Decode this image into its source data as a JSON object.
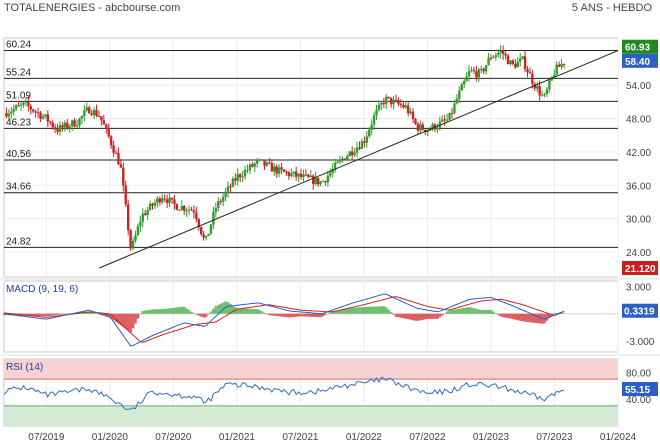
{
  "header": {
    "title": "TOTALENERGIES - abcbourse.com",
    "period": "5 ANS - HEBDO"
  },
  "colors": {
    "up": "#2e9e2e",
    "down": "#cc2222",
    "macd_line": "#2b5fc7",
    "signal_line": "#cc2222",
    "hist_pos": "#58b458",
    "hist_neg": "#d94444",
    "rsi_line": "#2b6fc7",
    "rsi_over": "#f7d2d2",
    "rsi_under": "#d6ebd6",
    "tag_high": "#1f8a1f",
    "tag_last": "#2b5fc7",
    "tag_low": "#c81e1e"
  },
  "chart_data": [
    {
      "type": "candlestick",
      "title": "TOTALENERGIES",
      "x_ticks": [
        "07/2019",
        "01/2020",
        "07/2020",
        "01/2021",
        "07/2021",
        "01/2022",
        "07/2022",
        "01/2023",
        "07/2023",
        "01/2024"
      ],
      "x_range": [
        "2019-03",
        "2024-01"
      ],
      "y_ticks": [
        24.0,
        30.0,
        36.0,
        42.0,
        48.0,
        54.0
      ],
      "ylim": [
        19.5,
        62.5
      ],
      "levels": [
        60.24,
        55.24,
        51.09,
        46.23,
        40.56,
        34.66,
        24.82
      ],
      "trendline": {
        "from": [
          "2019-12",
          21.12
        ],
        "to": [
          "2024-01",
          60.24
        ]
      },
      "tags": {
        "high": 60.93,
        "last": 58.4,
        "low": 21.12
      },
      "anchors": [
        [
          "2019-03",
          49.0
        ],
        [
          "2019-05",
          50.5
        ],
        [
          "2019-07",
          48.0
        ],
        [
          "2019-08",
          46.0
        ],
        [
          "2019-10",
          47.5
        ],
        [
          "2019-11",
          49.8
        ],
        [
          "2019-12",
          48.6
        ],
        [
          "2020-01",
          44.2
        ],
        [
          "2020-02",
          39.5
        ],
        [
          "2020-03",
          24.2
        ],
        [
          "2020-04",
          30.5
        ],
        [
          "2020-06",
          34.2
        ],
        [
          "2020-07",
          32.5
        ],
        [
          "2020-09",
          31.5
        ],
        [
          "2020-10",
          25.5
        ],
        [
          "2020-11",
          32.0
        ],
        [
          "2021-01",
          37.5
        ],
        [
          "2021-03",
          40.2
        ],
        [
          "2021-05",
          38.5
        ],
        [
          "2021-07",
          37.5
        ],
        [
          "2021-09",
          36.5
        ],
        [
          "2021-11",
          40.8
        ],
        [
          "2022-01",
          44.0
        ],
        [
          "2022-02",
          48.5
        ],
        [
          "2022-03",
          51.5
        ],
        [
          "2022-05",
          50.0
        ],
        [
          "2022-06",
          46.5
        ],
        [
          "2022-07",
          46.0
        ],
        [
          "2022-09",
          47.8
        ],
        [
          "2022-10",
          52.5
        ],
        [
          "2022-11",
          56.5
        ],
        [
          "2022-12",
          56.0
        ],
        [
          "2023-01",
          59.2
        ],
        [
          "2023-02",
          60.1
        ],
        [
          "2023-03",
          57.5
        ],
        [
          "2023-04",
          58.5
        ],
        [
          "2023-05",
          54.5
        ],
        [
          "2023-06",
          51.5
        ],
        [
          "2023-07",
          56.5
        ],
        [
          "2023-08",
          58.4
        ]
      ]
    },
    {
      "type": "line",
      "title": "MACD (9, 19, 6)",
      "y_ticks": [
        3.0,
        -3.0
      ],
      "ylim": [
        -4.2,
        3.6
      ],
      "last_value": 0.3319,
      "series": [
        {
          "name": "MACD",
          "points": [
            [
              "2019-03",
              0.0
            ],
            [
              "2019-07",
              -0.6
            ],
            [
              "2019-11",
              0.4
            ],
            [
              "2020-01",
              -0.3
            ],
            [
              "2020-03",
              -3.6
            ],
            [
              "2020-05",
              -2.4
            ],
            [
              "2020-08",
              -1.0
            ],
            [
              "2020-10",
              -1.4
            ],
            [
              "2020-12",
              0.8
            ],
            [
              "2021-03",
              1.2
            ],
            [
              "2021-06",
              0.3
            ],
            [
              "2021-09",
              0.0
            ],
            [
              "2021-12",
              1.2
            ],
            [
              "2022-03",
              2.2
            ],
            [
              "2022-06",
              0.6
            ],
            [
              "2022-08",
              0.2
            ],
            [
              "2022-11",
              1.6
            ],
            [
              "2023-01",
              1.8
            ],
            [
              "2023-03",
              0.9
            ],
            [
              "2023-06",
              -0.6
            ],
            [
              "2023-08",
              0.33
            ]
          ]
        },
        {
          "name": "Signal",
          "points": [
            [
              "2019-03",
              0.1
            ],
            [
              "2019-07",
              -0.4
            ],
            [
              "2019-11",
              0.2
            ],
            [
              "2020-01",
              0.0
            ],
            [
              "2020-04",
              -3.2
            ],
            [
              "2020-06",
              -2.3
            ],
            [
              "2020-09",
              -1.2
            ],
            [
              "2020-11",
              -0.9
            ],
            [
              "2021-01",
              0.5
            ],
            [
              "2021-04",
              1.0
            ],
            [
              "2021-07",
              0.4
            ],
            [
              "2021-10",
              0.2
            ],
            [
              "2022-01",
              1.0
            ],
            [
              "2022-04",
              1.9
            ],
            [
              "2022-07",
              0.8
            ],
            [
              "2022-09",
              0.4
            ],
            [
              "2022-12",
              1.4
            ],
            [
              "2023-02",
              1.6
            ],
            [
              "2023-04",
              1.0
            ],
            [
              "2023-07",
              -0.2
            ],
            [
              "2023-08",
              0.3
            ]
          ]
        }
      ]
    },
    {
      "type": "line",
      "title": "RSI (14)",
      "y_ticks": [
        80.0,
        40.0
      ],
      "ylim": [
        0,
        100
      ],
      "overbought": 70,
      "oversold": 30,
      "last_value": 55.15,
      "series": [
        {
          "name": "RSI",
          "points": [
            [
              "2019-03",
              52
            ],
            [
              "2019-05",
              58
            ],
            [
              "2019-07",
              46
            ],
            [
              "2019-09",
              50
            ],
            [
              "2019-11",
              56
            ],
            [
              "2020-01",
              42
            ],
            [
              "2020-03",
              22
            ],
            [
              "2020-05",
              52
            ],
            [
              "2020-07",
              47
            ],
            [
              "2020-09",
              44
            ],
            [
              "2020-10",
              34
            ],
            [
              "2020-12",
              62
            ],
            [
              "2021-02",
              60
            ],
            [
              "2021-04",
              56
            ],
            [
              "2021-06",
              50
            ],
            [
              "2021-09",
              52
            ],
            [
              "2021-11",
              60
            ],
            [
              "2022-01",
              64
            ],
            [
              "2022-03",
              70
            ],
            [
              "2022-05",
              58
            ],
            [
              "2022-07",
              48
            ],
            [
              "2022-09",
              52
            ],
            [
              "2022-11",
              62
            ],
            [
              "2023-01",
              60
            ],
            [
              "2023-03",
              54
            ],
            [
              "2023-06",
              40
            ],
            [
              "2023-08",
              55
            ]
          ]
        }
      ]
    }
  ],
  "tag_labels": {
    "high": "60.93",
    "last": "58.40",
    "low": "21.120",
    "macd_last": "0.3319",
    "rsi_last": "55.15"
  }
}
